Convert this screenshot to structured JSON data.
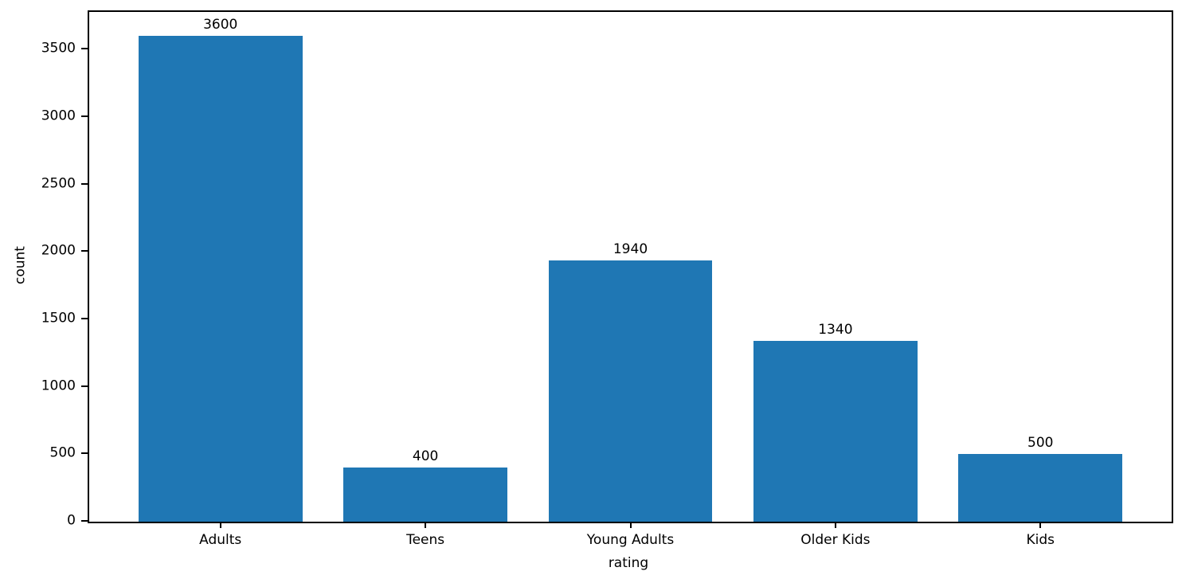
{
  "chart_data": {
    "type": "bar",
    "categories": [
      "Adults",
      "Teens",
      "Young Adults",
      "Older Kids",
      "Kids"
    ],
    "values": [
      3600,
      400,
      1940,
      1340,
      500
    ],
    "bar_labels": [
      "3600",
      "400",
      "1940",
      "1340",
      "500"
    ],
    "title": "",
    "xlabel": "rating",
    "ylabel": "count",
    "ylim": [
      0,
      3780
    ],
    "yticks": [
      0,
      500,
      1000,
      1500,
      2000,
      2500,
      3000,
      3500
    ],
    "grid": false,
    "legend": "none",
    "bar_color": "#1f77b4",
    "axis_color": "#000000",
    "text_color": "#000000"
  }
}
